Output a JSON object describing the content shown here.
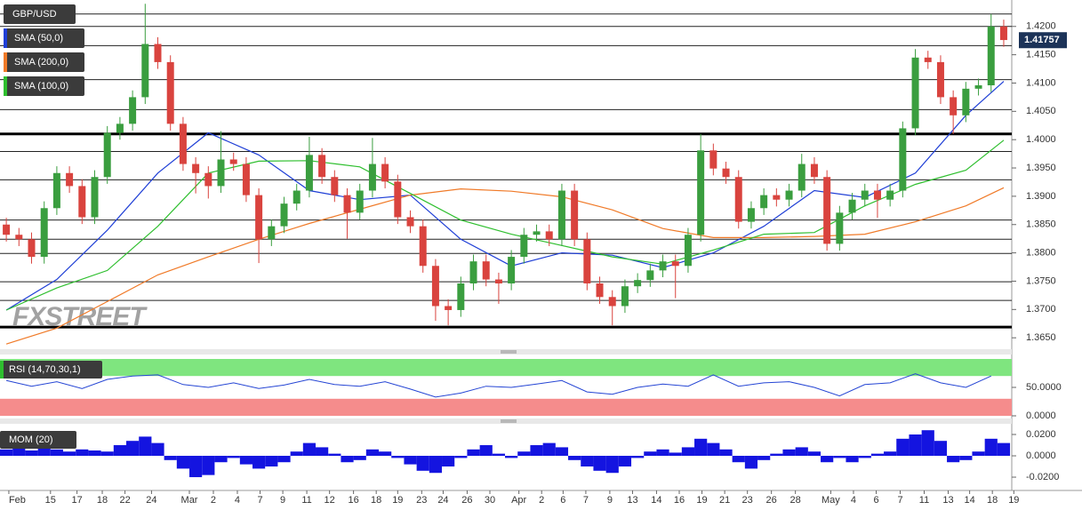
{
  "chart_data": [
    {
      "type": "candlestick",
      "title": "GBP/USD",
      "watermark": "FXSTREET",
      "up_color": "#3a9e3f",
      "down_color": "#d9433e",
      "xlim": [
        -0.5,
        85.2
      ],
      "ylim": [
        1.3633,
        1.4242
      ],
      "yticks": [
        {
          "value": 1.365,
          "label": "1.3650"
        },
        {
          "value": 1.37,
          "label": "1.3700"
        },
        {
          "value": 1.375,
          "label": "1.3750"
        },
        {
          "value": 1.38,
          "label": "1.3800"
        },
        {
          "value": 1.385,
          "label": "1.3850"
        },
        {
          "value": 1.39,
          "label": "1.3900"
        },
        {
          "value": 1.395,
          "label": "1.3950"
        },
        {
          "value": 1.4,
          "label": "1.4000"
        },
        {
          "value": 1.405,
          "label": "1.4050"
        },
        {
          "value": 1.41,
          "label": "1.4100"
        },
        {
          "value": 1.415,
          "label": "1.4150"
        },
        {
          "value": 1.42,
          "label": "1.4200"
        }
      ],
      "levels": [
        1.4222,
        1.42,
        1.4166,
        1.4106,
        1.4053,
        1.3979,
        1.3929,
        1.3858,
        1.3824,
        1.3799,
        1.3749,
        1.3716
      ],
      "key_levels": [
        1.401,
        1.3669
      ],
      "last_price": 1.41757,
      "ohlc": [
        [
          1.385,
          1.3862,
          1.382,
          1.3832
        ],
        [
          1.3832,
          1.3844,
          1.3812,
          1.3824
        ],
        [
          1.3824,
          1.3836,
          1.3781,
          1.3793
        ],
        [
          1.3793,
          1.3891,
          1.3781,
          1.3879
        ],
        [
          1.3879,
          1.3953,
          1.3867,
          1.3941
        ],
        [
          1.3941,
          1.3953,
          1.3906,
          1.3918
        ],
        [
          1.3918,
          1.393,
          1.3851,
          1.3863
        ],
        [
          1.3863,
          1.3946,
          1.3851,
          1.3934
        ],
        [
          1.3934,
          1.4024,
          1.3922,
          1.4012
        ],
        [
          1.4012,
          1.404,
          1.4,
          1.4028
        ],
        [
          1.4028,
          1.4087,
          1.4016,
          1.4075
        ],
        [
          1.4075,
          1.424,
          1.4063,
          1.4169
        ],
        [
          1.4169,
          1.4181,
          1.4125,
          1.4137
        ],
        [
          1.4137,
          1.4149,
          1.4016,
          1.4028
        ],
        [
          1.4028,
          1.404,
          1.3945,
          1.3957
        ],
        [
          1.3957,
          1.3969,
          1.3905,
          1.3941
        ],
        [
          1.3941,
          1.3953,
          1.3896,
          1.3918
        ],
        [
          1.3918,
          1.4015,
          1.3906,
          1.3965
        ],
        [
          1.3965,
          1.3977,
          1.3945,
          1.3957
        ],
        [
          1.3957,
          1.3969,
          1.389,
          1.3902
        ],
        [
          1.3902,
          1.3914,
          1.3782,
          1.3824
        ],
        [
          1.3824,
          1.3859,
          1.3812,
          1.3847
        ],
        [
          1.3847,
          1.3899,
          1.3835,
          1.3887
        ],
        [
          1.3887,
          1.3922,
          1.3875,
          1.391
        ],
        [
          1.391,
          1.4005,
          1.3898,
          1.3973
        ],
        [
          1.3973,
          1.3985,
          1.3922,
          1.3934
        ],
        [
          1.3934,
          1.3946,
          1.389,
          1.3902
        ],
        [
          1.3902,
          1.3914,
          1.3825,
          1.3871
        ],
        [
          1.3871,
          1.3922,
          1.3859,
          1.391
        ],
        [
          1.391,
          1.4003,
          1.3898,
          1.3957
        ],
        [
          1.3957,
          1.3969,
          1.3914,
          1.3926
        ],
        [
          1.3926,
          1.3938,
          1.3851,
          1.3863
        ],
        [
          1.3863,
          1.3875,
          1.3835,
          1.3847
        ],
        [
          1.3847,
          1.3859,
          1.3765,
          1.3777
        ],
        [
          1.3777,
          1.3789,
          1.368,
          1.3706
        ],
        [
          1.3706,
          1.3718,
          1.3672,
          1.3699
        ],
        [
          1.3699,
          1.3758,
          1.3687,
          1.3746
        ],
        [
          1.3746,
          1.3797,
          1.3734,
          1.3785
        ],
        [
          1.3785,
          1.3797,
          1.3741,
          1.3753
        ],
        [
          1.3753,
          1.3765,
          1.371,
          1.3746
        ],
        [
          1.3746,
          1.3805,
          1.3734,
          1.3793
        ],
        [
          1.3793,
          1.3844,
          1.3781,
          1.3832
        ],
        [
          1.3832,
          1.385,
          1.382,
          1.3838
        ],
        [
          1.3838,
          1.385,
          1.3812,
          1.3824
        ],
        [
          1.3824,
          1.3922,
          1.3812,
          1.391
        ],
        [
          1.391,
          1.3922,
          1.3812,
          1.3824
        ],
        [
          1.3824,
          1.3836,
          1.3734,
          1.3746
        ],
        [
          1.3746,
          1.3758,
          1.371,
          1.3722
        ],
        [
          1.3722,
          1.3734,
          1.3672,
          1.3706
        ],
        [
          1.3706,
          1.3753,
          1.3694,
          1.3741
        ],
        [
          1.3741,
          1.3764,
          1.3729,
          1.3752
        ],
        [
          1.3752,
          1.3781,
          1.374,
          1.3769
        ],
        [
          1.3769,
          1.3797,
          1.3757,
          1.3785
        ],
        [
          1.3785,
          1.3797,
          1.372,
          1.3777
        ],
        [
          1.3777,
          1.3844,
          1.3765,
          1.3832
        ],
        [
          1.3832,
          1.401,
          1.382,
          1.3981
        ],
        [
          1.3981,
          1.3993,
          1.3937,
          1.3949
        ],
        [
          1.3949,
          1.3961,
          1.3922,
          1.3934
        ],
        [
          1.3934,
          1.3946,
          1.3843,
          1.3855
        ],
        [
          1.3855,
          1.3891,
          1.3843,
          1.3879
        ],
        [
          1.3879,
          1.3914,
          1.3867,
          1.3902
        ],
        [
          1.3902,
          1.3914,
          1.3882,
          1.3894
        ],
        [
          1.3894,
          1.3922,
          1.3882,
          1.391
        ],
        [
          1.391,
          1.3975,
          1.3898,
          1.3957
        ],
        [
          1.3957,
          1.3969,
          1.3922,
          1.3934
        ],
        [
          1.3934,
          1.3946,
          1.3804,
          1.3816
        ],
        [
          1.3816,
          1.3883,
          1.3804,
          1.3871
        ],
        [
          1.3871,
          1.3906,
          1.3859,
          1.3894
        ],
        [
          1.3894,
          1.3922,
          1.3882,
          1.391
        ],
        [
          1.391,
          1.3922,
          1.3862,
          1.3894
        ],
        [
          1.3894,
          1.3922,
          1.3882,
          1.391
        ],
        [
          1.391,
          1.4032,
          1.3898,
          1.402
        ],
        [
          1.402,
          1.416,
          1.4008,
          1.4145
        ],
        [
          1.4145,
          1.4157,
          1.4125,
          1.4137
        ],
        [
          1.4137,
          1.4149,
          1.4063,
          1.4075
        ],
        [
          1.4075,
          1.4087,
          1.401,
          1.4043
        ],
        [
          1.4043,
          1.4102,
          1.4031,
          1.409
        ],
        [
          1.409,
          1.4108,
          1.4078,
          1.4096
        ],
        [
          1.4096,
          1.4222,
          1.4084,
          1.42
        ],
        [
          1.42,
          1.4212,
          1.4164,
          1.4176
        ]
      ],
      "series": [
        {
          "name": "SMA (50,0)",
          "color": "#1f3fd6",
          "x": [
            0,
            4,
            8,
            12,
            16,
            20,
            24,
            28,
            32,
            36,
            40,
            44,
            48,
            52,
            56,
            60,
            64,
            68,
            72,
            76,
            79
          ],
          "values": [
            1.3699,
            1.3753,
            1.384,
            1.3941,
            1.4012,
            1.3973,
            1.391,
            1.3894,
            1.3902,
            1.3824,
            1.3777,
            1.38,
            1.3796,
            1.3774,
            1.38,
            1.3847,
            1.391,
            1.3898,
            1.3941,
            1.4043,
            1.4103
          ]
        },
        {
          "name": "SMA (200,0)",
          "color": "#f07a28",
          "x": [
            0,
            4,
            8,
            12,
            16,
            20,
            24,
            28,
            32,
            36,
            40,
            44,
            48,
            52,
            56,
            60,
            64,
            68,
            72,
            76,
            79
          ],
          "values": [
            1.3639,
            1.3667,
            1.3714,
            1.3761,
            1.3793,
            1.3824,
            1.3852,
            1.3877,
            1.3902,
            1.3913,
            1.3909,
            1.3899,
            1.3876,
            1.3843,
            1.3827,
            1.3827,
            1.3829,
            1.3833,
            1.3855,
            1.3883,
            1.3915
          ]
        },
        {
          "name": "SMA (100,0)",
          "color": "#2fbf2f",
          "x": [
            0,
            4,
            8,
            12,
            16,
            20,
            24,
            28,
            32,
            36,
            40,
            44,
            48,
            52,
            56,
            60,
            64,
            68,
            72,
            76,
            79
          ],
          "values": [
            1.3699,
            1.3738,
            1.3769,
            1.3847,
            1.3941,
            1.3962,
            1.3963,
            1.3952,
            1.3905,
            1.3858,
            1.3833,
            1.3813,
            1.3793,
            1.378,
            1.3805,
            1.3833,
            1.3836,
            1.3883,
            1.3921,
            1.3946,
            1.3999
          ]
        }
      ]
    },
    {
      "type": "line",
      "title": "RSI (14,70,30,1)",
      "color": "#2545d4",
      "overbought": 70,
      "oversold": 30,
      "overbought_color": "#7fe57f",
      "oversold_color": "#f58c8c",
      "xlim": [
        -0.5,
        85.2
      ],
      "ylim": [
        0,
        100
      ],
      "yticks": [
        {
          "value": 0,
          "label": "0.0000"
        },
        {
          "value": 50,
          "label": "50.0000"
        }
      ],
      "x": [
        0,
        2,
        4,
        6,
        8,
        10,
        12,
        14,
        16,
        18,
        20,
        22,
        24,
        26,
        28,
        30,
        32,
        34,
        36,
        38,
        40,
        42,
        44,
        46,
        48,
        50,
        52,
        54,
        56,
        58,
        60,
        62,
        64,
        66,
        68,
        70,
        72,
        74,
        76,
        78
      ],
      "values": [
        62,
        52,
        60,
        48,
        64,
        70,
        72,
        55,
        50,
        58,
        48,
        54,
        64,
        55,
        52,
        60,
        47,
        33,
        40,
        52,
        50,
        56,
        62,
        42,
        38,
        50,
        56,
        52,
        72,
        52,
        58,
        60,
        50,
        35,
        55,
        58,
        74,
        58,
        50,
        70
      ]
    },
    {
      "type": "bar",
      "title": "MOM (20)",
      "color": "#1414e0",
      "xlim": [
        -0.5,
        85.2
      ],
      "ylim": [
        -0.0308,
        0.0275
      ],
      "yticks": [
        {
          "value": -0.02,
          "label": "-0.0200"
        },
        {
          "value": 0,
          "label": "0.0000"
        },
        {
          "value": 0.02,
          "label": "0.0200"
        }
      ],
      "xticks": [
        {
          "value": 0.2,
          "label": "Feb"
        },
        {
          "value": 3.5,
          "label": "15"
        },
        {
          "value": 5.6,
          "label": "17"
        },
        {
          "value": 7.6,
          "label": "18"
        },
        {
          "value": 9.4,
          "label": "22"
        },
        {
          "value": 11.5,
          "label": "24"
        },
        {
          "value": 14.5,
          "label": "Mar"
        },
        {
          "value": 16.4,
          "label": "2"
        },
        {
          "value": 18.3,
          "label": "4"
        },
        {
          "value": 20.1,
          "label": "7"
        },
        {
          "value": 21.9,
          "label": "9"
        },
        {
          "value": 23.8,
          "label": "11"
        },
        {
          "value": 25.6,
          "label": "12"
        },
        {
          "value": 27.5,
          "label": "16"
        },
        {
          "value": 29.3,
          "label": "18"
        },
        {
          "value": 31.0,
          "label": "19"
        },
        {
          "value": 32.9,
          "label": "23"
        },
        {
          "value": 34.6,
          "label": "24"
        },
        {
          "value": 36.5,
          "label": "26"
        },
        {
          "value": 38.3,
          "label": "30"
        },
        {
          "value": 40.6,
          "label": "Apr"
        },
        {
          "value": 42.4,
          "label": "2"
        },
        {
          "value": 44.1,
          "label": "6"
        },
        {
          "value": 45.9,
          "label": "7"
        },
        {
          "value": 47.8,
          "label": "9"
        },
        {
          "value": 49.6,
          "label": "13"
        },
        {
          "value": 51.5,
          "label": "14"
        },
        {
          "value": 53.3,
          "label": "16"
        },
        {
          "value": 55.1,
          "label": "19"
        },
        {
          "value": 56.9,
          "label": "21"
        },
        {
          "value": 58.7,
          "label": "23"
        },
        {
          "value": 60.6,
          "label": "26"
        },
        {
          "value": 62.5,
          "label": "28"
        },
        {
          "value": 65.3,
          "label": "May"
        },
        {
          "value": 67.1,
          "label": "4"
        },
        {
          "value": 68.9,
          "label": "6"
        },
        {
          "value": 70.8,
          "label": "7"
        },
        {
          "value": 72.7,
          "label": "11"
        },
        {
          "value": 74.6,
          "label": "13"
        },
        {
          "value": 76.3,
          "label": "14"
        },
        {
          "value": 78.1,
          "label": "18"
        },
        {
          "value": 79.8,
          "label": "19"
        }
      ],
      "values": [
        0.006,
        0.008,
        0.005,
        0.007,
        0.006,
        0.004,
        0.006,
        0.005,
        0.004,
        0.01,
        0.014,
        0.018,
        0.012,
        -0.004,
        -0.012,
        -0.02,
        -0.018,
        -0.006,
        -0.002,
        -0.008,
        -0.012,
        -0.01,
        -0.006,
        0.004,
        0.012,
        0.008,
        0.002,
        -0.006,
        -0.004,
        0.006,
        0.004,
        -0.002,
        -0.008,
        -0.014,
        -0.016,
        -0.01,
        -0.002,
        0.006,
        0.01,
        0.002,
        -0.002,
        0.004,
        0.01,
        0.012,
        0.008,
        -0.004,
        -0.01,
        -0.014,
        -0.016,
        -0.01,
        -0.002,
        0.004,
        0.006,
        0.003,
        0.008,
        0.016,
        0.012,
        0.006,
        -0.006,
        -0.012,
        -0.004,
        0.002,
        0.006,
        0.008,
        0.004,
        -0.006,
        -0.002,
        -0.006,
        -0.002,
        0.002,
        0.004,
        0.016,
        0.02,
        0.024,
        0.014,
        -0.006,
        -0.004,
        0.004,
        0.016,
        0.012
      ]
    }
  ]
}
